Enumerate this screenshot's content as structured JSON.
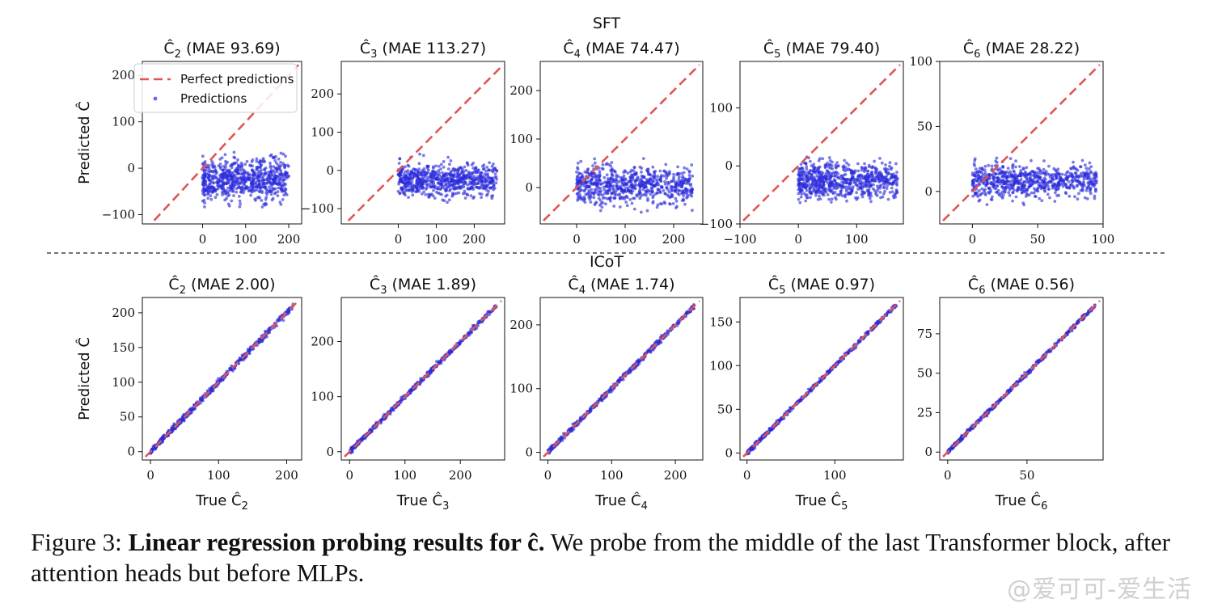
{
  "figure": {
    "row_titles": [
      "SFT",
      "ICoT"
    ],
    "watermark": "@爱可可-爱生活",
    "caption": {
      "label": "Figure 3:",
      "bold": "Linear regression probing results for ĉ.",
      "rest": "We probe from the middle of the last Transformer block, after attention heads but before MLPs."
    }
  },
  "colors": {
    "points": "#2b2bdc",
    "perfect_line": "#e05555"
  },
  "chart_data": [
    {
      "type": "scatter",
      "row": "SFT",
      "title": "Ĉ2 (MAE 93.69)",
      "title_sym": "Ĉ",
      "title_sub": "2",
      "title_rest": "(MAE 93.69)",
      "mae": 93.69,
      "xlim": [
        -140,
        230
      ],
      "ylim": [
        -120,
        230
      ],
      "xticks": [
        0,
        100,
        200
      ],
      "yticks": [
        -100,
        0,
        100,
        200
      ],
      "ylabel": "Predicted Ĉ",
      "xlabel": "",
      "n": 700,
      "cloud": {
        "x_range": [
          0,
          200
        ],
        "y_center": -25,
        "y_spread": 30
      },
      "legend": [
        "Perfect predictions",
        "Predictions"
      ]
    },
    {
      "type": "scatter",
      "row": "SFT",
      "title": "Ĉ3 (MAE 113.27)",
      "title_sym": "Ĉ",
      "title_sub": "3",
      "title_rest": "(MAE 113.27)",
      "mae": 113.27,
      "xlim": [
        -150,
        280
      ],
      "ylim": [
        -140,
        285
      ],
      "xticks": [
        0,
        100,
        200
      ],
      "yticks": [
        -100,
        0,
        100,
        200
      ],
      "ylabel": "",
      "xlabel": "",
      "n": 700,
      "cloud": {
        "x_range": [
          0,
          260
        ],
        "y_center": -25,
        "y_spread": 30
      }
    },
    {
      "type": "scatter",
      "row": "SFT",
      "title": "Ĉ4 (MAE 74.47)",
      "title_sym": "Ĉ",
      "title_sub": "4",
      "title_rest": "(MAE 74.47)",
      "mae": 74.47,
      "xlim": [
        -75,
        260
      ],
      "ylim": [
        -75,
        260
      ],
      "xticks": [
        0,
        100,
        200
      ],
      "yticks": [
        0,
        100,
        200
      ],
      "ylabel": "",
      "xlabel": "",
      "n": 700,
      "cloud": {
        "x_range": [
          0,
          240
        ],
        "y_center": 5,
        "y_spread": 28
      }
    },
    {
      "type": "scatter",
      "row": "SFT",
      "title": "Ĉ5 (MAE 79.40)",
      "title_sym": "Ĉ",
      "title_sub": "5",
      "title_rest": "(MAE 79.40)",
      "mae": 79.4,
      "xlim": [
        -100,
        180
      ],
      "ylim": [
        -100,
        180
      ],
      "xticks": [
        -100,
        0,
        100
      ],
      "yticks": [
        -100,
        0,
        100
      ],
      "ylabel": "",
      "xlabel": "",
      "n": 700,
      "cloud": {
        "x_range": [
          0,
          170
        ],
        "y_center": -25,
        "y_spread": 22
      }
    },
    {
      "type": "scatter",
      "row": "SFT",
      "title": "Ĉ6 (MAE 28.22)",
      "title_sym": "Ĉ",
      "title_sub": "6",
      "title_rest": "(MAE 28.22)",
      "mae": 28.22,
      "xlim": [
        -25,
        100
      ],
      "ylim": [
        -25,
        100
      ],
      "xticks": [
        0,
        50,
        100
      ],
      "yticks": [
        0,
        50,
        100
      ],
      "ylabel": "",
      "xlabel": "",
      "n": 700,
      "cloud": {
        "x_range": [
          0,
          95
        ],
        "y_center": 8,
        "y_spread": 9
      }
    },
    {
      "type": "scatter",
      "row": "ICoT",
      "title": "Ĉ2 (MAE 2.00)",
      "title_sym": "Ĉ",
      "title_sub": "2",
      "title_rest": "(MAE 2.00)",
      "mae": 2.0,
      "xlim": [
        -12,
        222
      ],
      "ylim": [
        -12,
        222
      ],
      "xticks": [
        0,
        100,
        200
      ],
      "yticks": [
        0,
        50,
        100,
        150,
        200
      ],
      "ylabel": "Predicted Ĉ",
      "xlabel": "True Ĉ2",
      "n": 500,
      "diag": {
        "x_range": [
          0,
          210
        ],
        "noise": 3
      }
    },
    {
      "type": "scatter",
      "row": "ICoT",
      "title": "Ĉ3 (MAE 1.89)",
      "title_sym": "Ĉ",
      "title_sub": "3",
      "title_rest": "(MAE 1.89)",
      "mae": 1.89,
      "xlim": [
        -15,
        280
      ],
      "ylim": [
        -15,
        280
      ],
      "xticks": [
        0,
        100,
        200
      ],
      "yticks": [
        0,
        100,
        200
      ],
      "ylabel": "",
      "xlabel": "True Ĉ3",
      "n": 500,
      "diag": {
        "x_range": [
          0,
          265
        ],
        "noise": 3
      }
    },
    {
      "type": "scatter",
      "row": "ICoT",
      "title": "Ĉ4 (MAE 1.74)",
      "title_sym": "Ĉ",
      "title_sub": "4",
      "title_rest": "(MAE 1.74)",
      "mae": 1.74,
      "xlim": [
        -12,
        243
      ],
      "ylim": [
        -12,
        243
      ],
      "xticks": [
        0,
        100,
        200
      ],
      "yticks": [
        0,
        100,
        200
      ],
      "ylabel": "",
      "xlabel": "True Ĉ4",
      "n": 500,
      "diag": {
        "x_range": [
          0,
          230
        ],
        "noise": 2.8
      }
    },
    {
      "type": "scatter",
      "row": "ICoT",
      "title": "Ĉ5 (MAE 0.97)",
      "title_sym": "Ĉ",
      "title_sub": "5",
      "title_rest": "(MAE 0.97)",
      "mae": 0.97,
      "xlim": [
        -8,
        178
      ],
      "ylim": [
        -8,
        178
      ],
      "xticks": [
        0,
        100
      ],
      "yticks": [
        0,
        50,
        100,
        150
      ],
      "ylabel": "",
      "xlabel": "True Ĉ5",
      "n": 500,
      "diag": {
        "x_range": [
          0,
          170
        ],
        "noise": 1.6
      }
    },
    {
      "type": "scatter",
      "row": "ICoT",
      "title": "Ĉ6 (MAE 0.56)",
      "title_sym": "Ĉ",
      "title_sub": "6",
      "title_rest": "(MAE 0.56)",
      "mae": 0.56,
      "xlim": [
        -5,
        98
      ],
      "ylim": [
        -5,
        98
      ],
      "xticks": [
        0,
        50
      ],
      "yticks": [
        0,
        25,
        50,
        75
      ],
      "ylabel": "",
      "xlabel": "True Ĉ6",
      "n": 500,
      "diag": {
        "x_range": [
          0,
          93
        ],
        "noise": 0.9
      }
    }
  ]
}
